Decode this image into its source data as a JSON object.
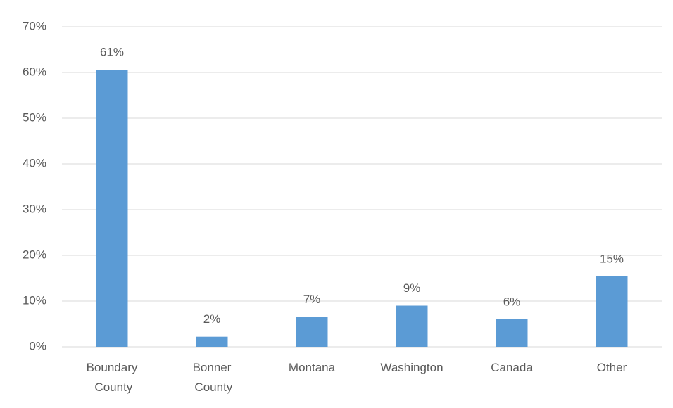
{
  "chart_data": {
    "type": "bar",
    "categories": [
      "Boundary County",
      "Bonner County",
      "Montana",
      "Washington",
      "Canada",
      "Other"
    ],
    "values": [
      60.6,
      2.2,
      6.5,
      9,
      6,
      15.4
    ],
    "value_labels": [
      "61%",
      "2%",
      "7%",
      "9%",
      "6%",
      "15%"
    ],
    "color": "#5b9bd5",
    "ylim": [
      0,
      70
    ],
    "yticks": [
      {
        "value": 0,
        "label": "0%"
      },
      {
        "value": 10,
        "label": "10%"
      },
      {
        "value": 20,
        "label": "20%"
      },
      {
        "value": 30,
        "label": "30%"
      },
      {
        "value": 40,
        "label": "40%"
      },
      {
        "value": 50,
        "label": "50%"
      },
      {
        "value": 60,
        "label": "60%"
      },
      {
        "value": 70,
        "label": "70%"
      }
    ],
    "grid": true
  }
}
